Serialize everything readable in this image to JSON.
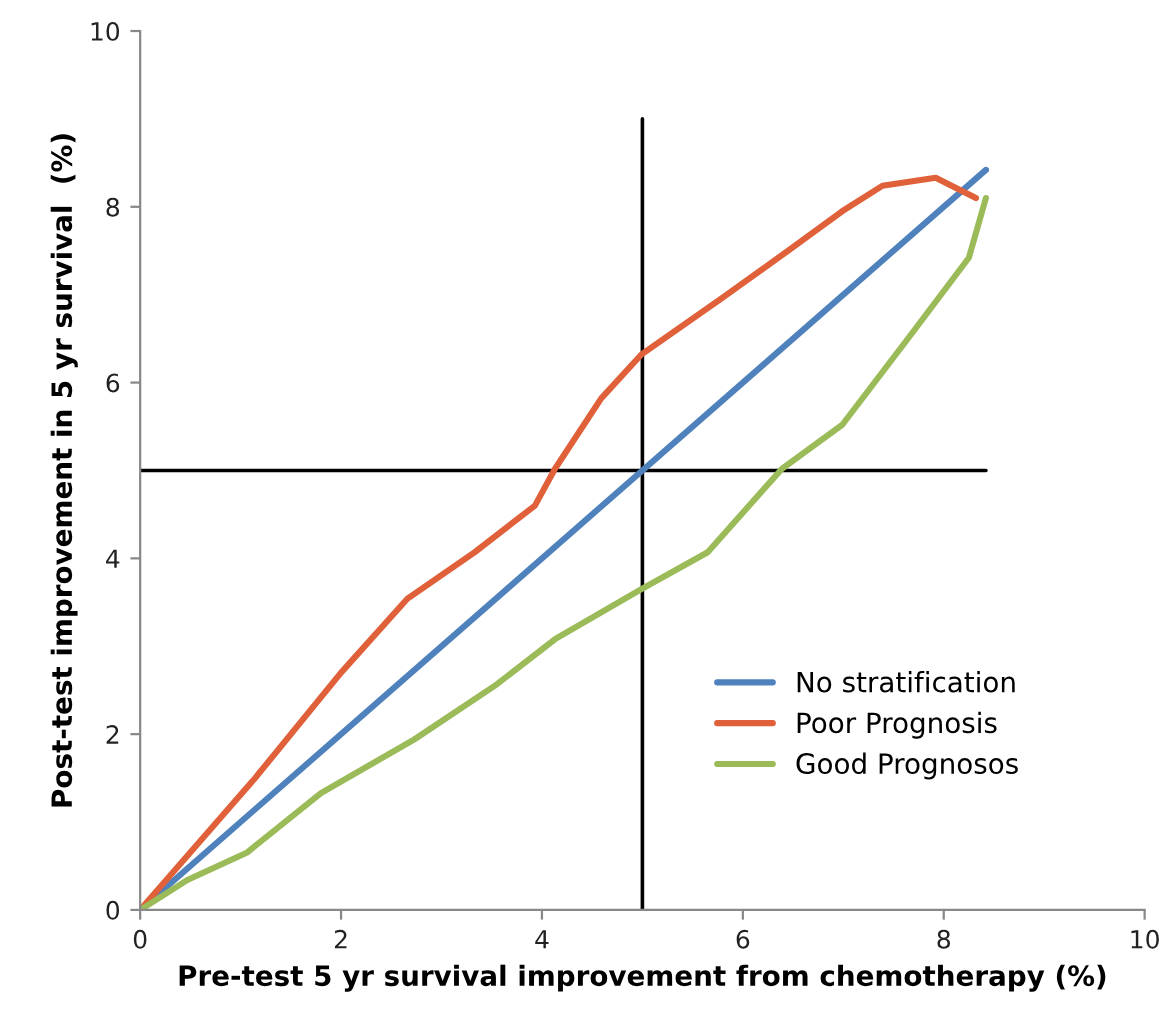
{
  "chart_data": {
    "type": "line",
    "xlabel": "Pre-test 5 yr survival improvement from chemotherapy (%)",
    "ylabel": "Post-test improvement in 5 yr survival  (%)",
    "xlim": [
      0,
      10
    ],
    "xticks": [
      0,
      2,
      4,
      6,
      8,
      10
    ],
    "ylim": [
      0,
      10
    ],
    "yticks": [
      0,
      2,
      4,
      6,
      8,
      10
    ],
    "grid": false,
    "legend": "bottom right",
    "marker": "none",
    "line_style": "solid",
    "series": [
      {
        "type": "line",
        "color": "#000000",
        "x": [
          5,
          5
        ],
        "values": [
          0,
          9
        ]
      },
      {
        "type": "line",
        "color": "#000000",
        "x": [
          0,
          8.42
        ],
        "values": [
          5,
          5
        ]
      },
      {
        "name": "No stratification",
        "color": "#4f81bd",
        "x": [
          0,
          8.42
        ],
        "values": [
          0,
          8.42
        ]
      },
      {
        "name": "Poor Prognosis",
        "color": "#e0603a",
        "x": [
          0,
          1.13,
          2.0,
          2.66,
          3.33,
          3.93,
          4.13,
          4.59,
          4.99,
          5.79,
          6.45,
          6.99,
          7.39,
          7.92,
          8.32
        ],
        "values": [
          0,
          1.48,
          2.7,
          3.54,
          4.07,
          4.6,
          5.02,
          5.82,
          6.32,
          6.96,
          7.5,
          7.95,
          8.24,
          8.33,
          8.1
        ]
      },
      {
        "name": "Good Prognosos",
        "color": "#9bbb59",
        "x": [
          0,
          0.47,
          1.06,
          1.8,
          2.73,
          3.53,
          4.13,
          4.99,
          5.65,
          6.39,
          6.99,
          7.65,
          8.25,
          8.42
        ],
        "values": [
          0,
          0.34,
          0.65,
          1.33,
          1.94,
          2.55,
          3.08,
          3.65,
          4.07,
          5.02,
          5.52,
          6.51,
          7.42,
          8.1
        ]
      }
    ]
  }
}
